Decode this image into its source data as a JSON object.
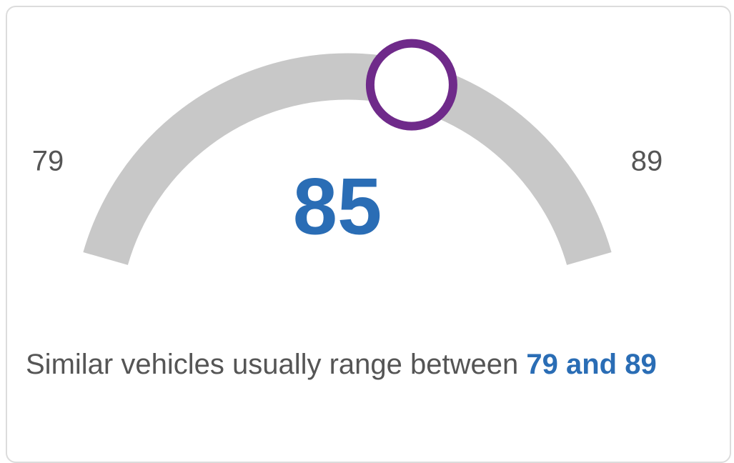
{
  "gauge": {
    "min": 79,
    "max": 89,
    "value": 85
  },
  "caption": {
    "text": "Similar vehicles usually range between",
    "highlight": "79 and 89"
  }
}
